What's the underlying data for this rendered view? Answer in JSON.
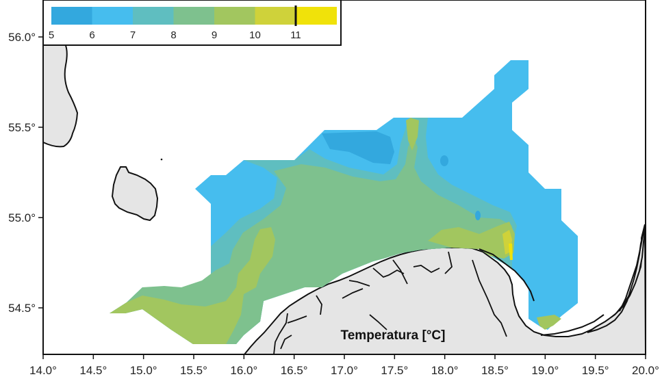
{
  "map": {
    "title": "Temperatura [°C]",
    "x_ticks": [
      "14.0°",
      "14.5°",
      "15.0°",
      "15.5°",
      "16.0°",
      "16.5°",
      "17.0°",
      "17.5°",
      "18.0°",
      "18.5°",
      "19.0°",
      "19.5°",
      "20.0°"
    ],
    "y_ticks": [
      "56.0°",
      "55.5°",
      "55.0°",
      "54.5°"
    ],
    "colors": {
      "land": "#e5e5e5",
      "sea": "#ffffff",
      "c5": "#33a8de",
      "c6": "#46bdee",
      "c7": "#5fbec0",
      "c8": "#7ec18e",
      "c9": "#a2c65f",
      "c10": "#cfd23a",
      "c11": "#f0e20a"
    }
  },
  "legend": {
    "labels": [
      "5",
      "6",
      "7",
      "8",
      "9",
      "10",
      "11"
    ],
    "marker_value": "11"
  }
}
